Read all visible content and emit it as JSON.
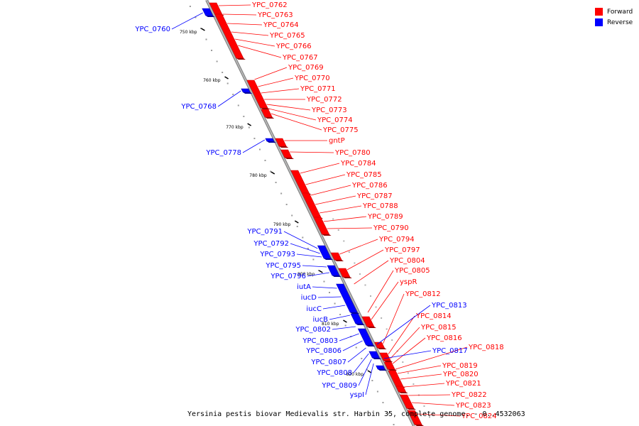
{
  "legend": {
    "forward_label": "Forward",
    "reverse_label": "Reverse",
    "forward_color": "#ff0000",
    "reverse_color": "#0000ff"
  },
  "caption": "Yersinia pestis biovar Medievalis str. Harbin 35, complete genome. - 0..4532063",
  "ticks": [
    "750 kbp",
    "760 kbp",
    "770 kbp",
    "780 kbp",
    "790 kbp",
    "800 kbp",
    "810 kbp",
    "820 kbp"
  ],
  "forward_labels": [
    "YPC_0762",
    "YPC_0763",
    "YPC_0764",
    "YPC_0765",
    "YPC_0766",
    "YPC_0767",
    "YPC_0769",
    "YPC_0770",
    "YPC_0771",
    "YPC_0772",
    "YPC_0773",
    "YPC_0774",
    "YPC_0775",
    "gntP",
    "YPC_0780",
    "YPC_0784",
    "YPC_0785",
    "YPC_0786",
    "YPC_0787",
    "YPC_0788",
    "YPC_0789",
    "YPC_0790",
    "YPC_0794",
    "YPC_0797",
    "YPC_0804",
    "YPC_0805",
    "yspR",
    "YPC_0812",
    "YPC_0814",
    "YPC_0815",
    "YPC_0816",
    "YPC_0818",
    "YPC_0819",
    "YPC_0820",
    "YPC_0821",
    "YPC_0822",
    "YPC_0823",
    "YPC_0824"
  ],
  "reverse_labels": [
    "YPC_0760",
    "YPC_0768",
    "YPC_0778",
    "YPC_0791",
    "YPC_0792",
    "YPC_0793",
    "YPC_0795",
    "YPC_0796",
    "iutA",
    "iucD",
    "iucC",
    "iucB",
    "YPC_0802",
    "YPC_0803",
    "YPC_0806",
    "YPC_0807",
    "YPC_0808",
    "YPC_0809",
    "yspI",
    "YPC_0813",
    "YPC_0817"
  ]
}
